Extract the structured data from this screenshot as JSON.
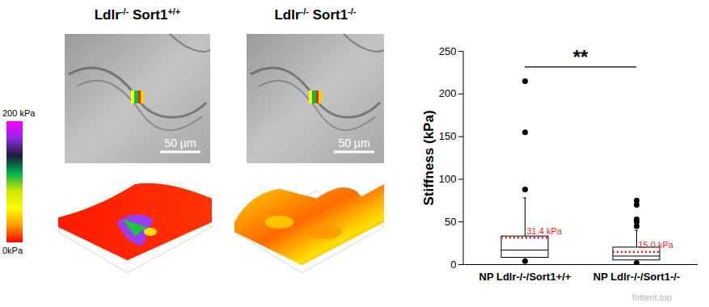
{
  "figure": {
    "panels": [
      {
        "title": "Ldlr-/- Sort1+/+",
        "scale_bar": "50 µm"
      },
      {
        "title": "Ldlr-/- Sort1-/-",
        "scale_bar": "50 µm"
      }
    ],
    "colorbar": {
      "range": [
        0,
        200
      ],
      "ticks": [
        {
          "value": 200,
          "label": "200 kPa"
        },
        {
          "value": 0,
          "label": "0kPa"
        }
      ],
      "colors": [
        "#ff00ff",
        "#8a2be2",
        "#1c1c3a",
        "#00b050",
        "#c8e600",
        "#ffff00",
        "#ffa000",
        "#ff0000"
      ]
    },
    "watermark": "fottent.top"
  },
  "chart_data": {
    "type": "box",
    "y_label": "Stiffness (kPa)",
    "categories": [
      "NP Ldlr-/-/Sort1+/+",
      "NP Ldlr-/-/Sort1-/-"
    ],
    "ylim": [
      0,
      250
    ],
    "yticks": [
      0,
      50,
      100,
      150,
      200,
      250
    ],
    "color": "#000000",
    "mean_line": {
      "color": "#e8262a",
      "line_style": "dotted"
    },
    "boxes": [
      {
        "category": "NP Ldlr-/-/Sort1+/+",
        "whisker_low": 3,
        "q1": 8,
        "median": 17,
        "q3": 33,
        "whisker_high": 78,
        "mean": 31.4,
        "mean_label": "31.4 kPa",
        "outliers": [
          88,
          155,
          215,
          4
        ]
      },
      {
        "category": "NP Ldlr-/-/Sort1-/-",
        "whisker_low": 2,
        "q1": 5,
        "median": 10,
        "q3": 20,
        "whisker_high": 40,
        "mean": 15.0,
        "mean_label": "15.0 kPa",
        "outliers": [
          45,
          50,
          53,
          70,
          75,
          2
        ]
      }
    ],
    "significance": {
      "label": "**",
      "between": [
        "NP Ldlr-/-/Sort1+/+",
        "NP Ldlr-/-/Sort1-/-"
      ]
    }
  }
}
